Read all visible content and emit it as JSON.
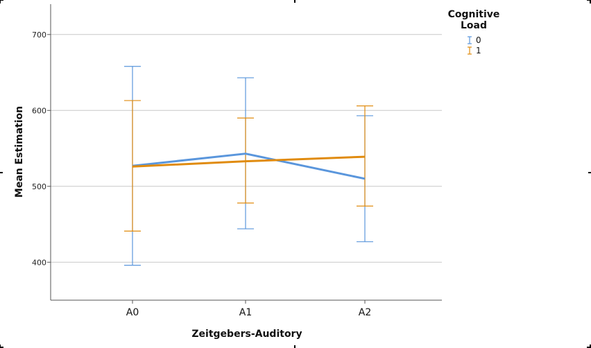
{
  "chart_data": {
    "type": "line",
    "xlabel": "Zeitgebers-Auditory",
    "ylabel": "Mean Estimation",
    "categories": [
      "A0",
      "A1",
      "A2"
    ],
    "ylim": [
      350,
      740
    ],
    "yticks": [
      400,
      500,
      600,
      700
    ],
    "grid": true,
    "error_bars": true,
    "legend": {
      "title_line1": "Cognitive",
      "title_line2": "Load",
      "placement": "top-right"
    },
    "series": [
      {
        "name": "0",
        "color": "#5a96dc",
        "values": [
          527,
          543,
          510
        ],
        "lower": [
          396,
          444,
          427
        ],
        "upper": [
          658,
          643,
          593
        ]
      },
      {
        "name": "1",
        "color": "#e08b0f",
        "values": [
          526,
          533,
          539
        ],
        "lower": [
          441,
          478,
          474
        ],
        "upper": [
          613,
          590,
          606
        ]
      }
    ]
  }
}
